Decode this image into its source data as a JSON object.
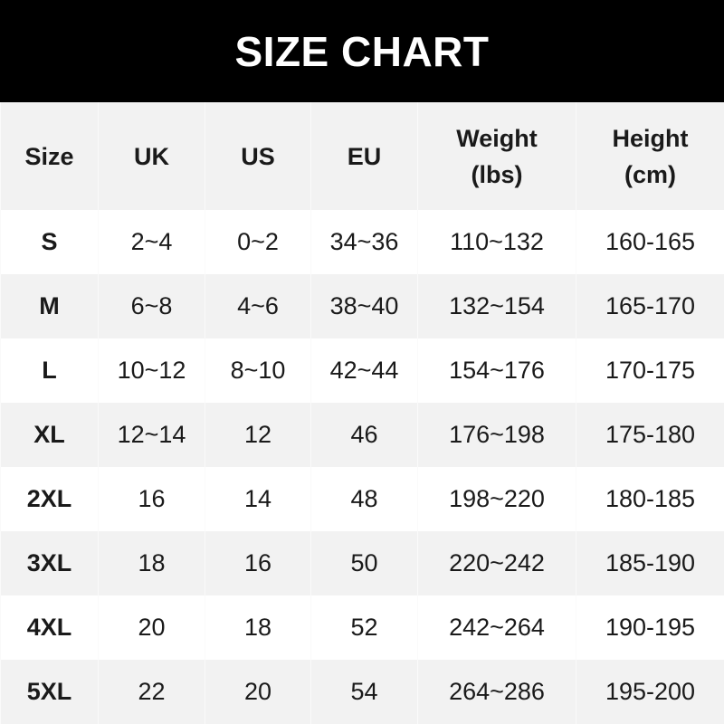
{
  "title": "SIZE CHART",
  "headers": [
    [
      "Size"
    ],
    [
      "UK"
    ],
    [
      "US"
    ],
    [
      "EU"
    ],
    [
      "Weight",
      "(lbs)"
    ],
    [
      "Height",
      "(cm)"
    ]
  ],
  "rows": [
    [
      "S",
      "2~4",
      "0~2",
      "34~36",
      "110~132",
      "160-165"
    ],
    [
      "M",
      "6~8",
      "4~6",
      "38~40",
      "132~154",
      "165-170"
    ],
    [
      "L",
      "10~12",
      "8~10",
      "42~44",
      "154~176",
      "170-175"
    ],
    [
      "XL",
      "12~14",
      "12",
      "46",
      "176~198",
      "175-180"
    ],
    [
      "2XL",
      "16",
      "14",
      "48",
      "198~220",
      "180-185"
    ],
    [
      "3XL",
      "18",
      "16",
      "50",
      "220~242",
      "185-190"
    ],
    [
      "4XL",
      "20",
      "18",
      "52",
      "242~264",
      "190-195"
    ],
    [
      "5XL",
      "22",
      "20",
      "54",
      "264~286",
      "195-200"
    ]
  ],
  "colors": {
    "header_bg": "#000000",
    "row_alt": "#f2f2f2"
  }
}
